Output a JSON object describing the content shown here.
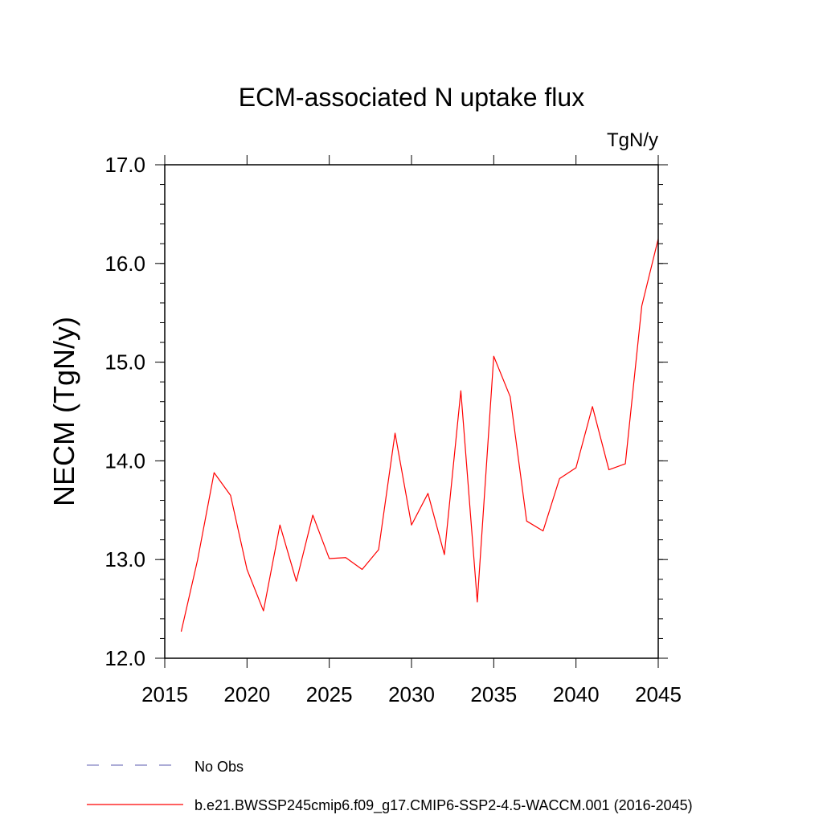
{
  "chart_data": {
    "type": "line",
    "title": "ECM-associated N uptake flux",
    "units_label": "TgN/y",
    "xlabel": "",
    "ylabel": "NECM  (TgN/y)",
    "xlim": [
      2015,
      2045
    ],
    "ylim": [
      12.0,
      17.0
    ],
    "x_ticks": [
      "2015",
      "2020",
      "2025",
      "2030",
      "2035",
      "2040",
      "2045"
    ],
    "y_ticks": [
      "12.0",
      "13.0",
      "14.0",
      "15.0",
      "16.0",
      "17.0"
    ],
    "grid": false,
    "legend_position": "bottom",
    "series": [
      {
        "name": "b.e21.BWSSP245cmip6.f09_g17.CMIP6-SSP2-4.5-WACCM.001 (2016-2045)",
        "color": "#ff0000",
        "x": [
          2016,
          2017,
          2018,
          2019,
          2020,
          2021,
          2022,
          2023,
          2024,
          2025,
          2026,
          2027,
          2028,
          2029,
          2030,
          2031,
          2032,
          2033,
          2034,
          2035,
          2036,
          2037,
          2038,
          2039,
          2040,
          2041,
          2042,
          2043,
          2044,
          2045
        ],
        "values": [
          12.27,
          13.0,
          13.88,
          13.65,
          12.9,
          12.48,
          13.35,
          12.78,
          13.45,
          13.01,
          13.02,
          12.9,
          13.1,
          14.28,
          13.35,
          13.67,
          13.05,
          14.71,
          12.57,
          15.06,
          14.65,
          13.39,
          13.29,
          13.82,
          13.93,
          14.55,
          13.91,
          13.97,
          15.57,
          16.25
        ]
      }
    ],
    "legend": [
      {
        "label": "No Obs",
        "color": "#7b7bbf",
        "dash": "dashed"
      },
      {
        "label": "b.e21.BWSSP245cmip6.f09_g17.CMIP6-SSP2-4.5-WACCM.001 (2016-2045)",
        "color": "#ff0000",
        "dash": "solid"
      }
    ]
  }
}
